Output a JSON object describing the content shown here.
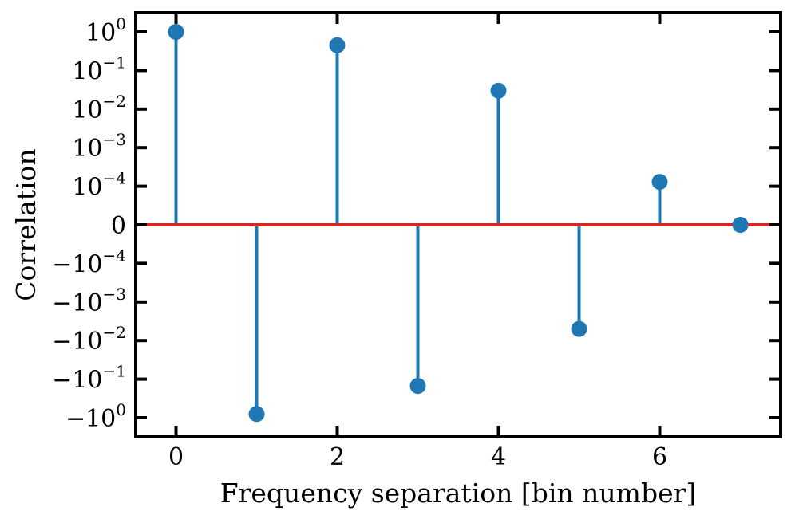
{
  "chart_data": {
    "type": "stem",
    "xlabel": "Frequency separation [bin number]",
    "ylabel": "Correlation",
    "x_ticks": [
      0,
      2,
      4,
      6
    ],
    "x_tick_labels": [
      "0",
      "2",
      "4",
      "6"
    ],
    "xlim": [
      -0.5,
      7.5
    ],
    "y_scale": "symlog",
    "y_linthresh": 0.0001,
    "y_ticks": [
      {
        "value": 1,
        "base": "10",
        "exp": "0"
      },
      {
        "value": 0.1,
        "base": "10",
        "exp": "−1"
      },
      {
        "value": 0.01,
        "base": "10",
        "exp": "−2"
      },
      {
        "value": 0.001,
        "base": "10",
        "exp": "−3"
      },
      {
        "value": 0.0001,
        "base": "10",
        "exp": "−4"
      },
      {
        "value": 0,
        "base": "0",
        "exp": ""
      },
      {
        "value": -0.0001,
        "base": "−10",
        "exp": "−4"
      },
      {
        "value": -0.001,
        "base": "−10",
        "exp": "−3"
      },
      {
        "value": -0.01,
        "base": "−10",
        "exp": "−2"
      },
      {
        "value": -0.1,
        "base": "−10",
        "exp": "−1"
      },
      {
        "value": -1,
        "base": "−10",
        "exp": "0"
      }
    ],
    "grid": false,
    "series": [
      {
        "x": [
          0,
          1,
          2,
          3,
          4,
          5,
          6,
          7
        ],
        "y": [
          1.0,
          -0.8,
          0.45,
          -0.15,
          0.03,
          -0.005,
          0.00013,
          0.0
        ],
        "color": "#1f77b4"
      }
    ],
    "baseline": {
      "y": 0,
      "color": "#d62728"
    }
  }
}
